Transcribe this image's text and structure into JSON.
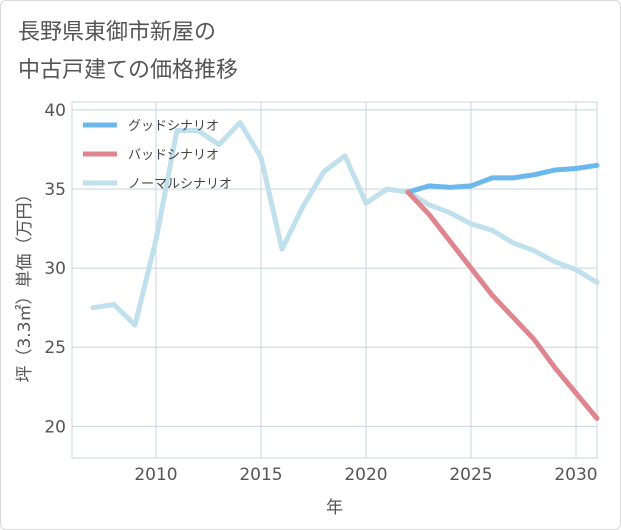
{
  "title": {
    "line1": "長野県東御市新屋の",
    "line2": "中古戸建ての価格推移"
  },
  "chart_data": {
    "type": "line",
    "xlabel": "年",
    "ylabel": "坪（3.3㎡）単価（万円）",
    "xlim": [
      2006,
      2031
    ],
    "ylim": [
      18,
      40.5
    ],
    "x_ticks": [
      2010,
      2015,
      2020,
      2025,
      2030
    ],
    "y_ticks": [
      20,
      25,
      30,
      35,
      40
    ],
    "grid": true,
    "legend_position": "top-left",
    "series": [
      {
        "name": "グッドシナリオ",
        "color": "#6cb8ee",
        "x": [
          2022,
          2023,
          2024,
          2025,
          2026,
          2027,
          2028,
          2029,
          2030,
          2031
        ],
        "y": [
          34.8,
          35.2,
          35.1,
          35.2,
          35.7,
          35.7,
          35.9,
          36.2,
          36.3,
          36.5
        ]
      },
      {
        "name": "バッドシナリオ",
        "color": "#de858e",
        "x": [
          2022,
          2023,
          2024,
          2025,
          2026,
          2027,
          2028,
          2029,
          2030,
          2031
        ],
        "y": [
          34.8,
          33.4,
          31.7,
          30.0,
          28.3,
          26.9,
          25.5,
          23.7,
          22.1,
          20.5
        ]
      },
      {
        "name": "ノーマルシナリオ",
        "color": "#bfe0ec",
        "x": [
          2007,
          2008,
          2009,
          2010,
          2011,
          2012,
          2013,
          2014,
          2015,
          2016,
          2017,
          2018,
          2019,
          2020,
          2021,
          2022,
          2023,
          2024,
          2025,
          2026,
          2027,
          2028,
          2029,
          2030,
          2031
        ],
        "y": [
          27.5,
          27.7,
          26.4,
          31.8,
          38.7,
          38.7,
          37.8,
          39.2,
          37.0,
          31.2,
          33.9,
          36.1,
          37.1,
          34.1,
          35.0,
          34.8,
          34.0,
          33.5,
          32.8,
          32.4,
          31.6,
          31.1,
          30.4,
          29.9,
          29.1
        ]
      }
    ]
  }
}
